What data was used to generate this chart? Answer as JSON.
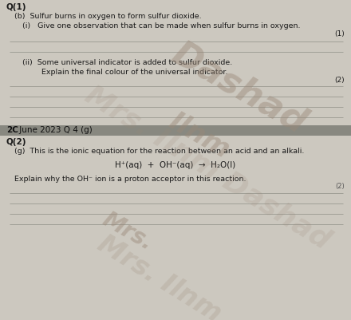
{
  "bg_color": "#ccc8bf",
  "header_bar_color": "#888880",
  "title_q1": "Q(1)",
  "part_b": "(b)  Sulfur burns in oxygen to form sulfur dioxide.",
  "part_i_label": "(i)   Give one observation that can be made when sulfur burns in oxygen.",
  "marks_i": "(1)",
  "part_ii_label_1": "(ii)  Some universal indicator is added to sulfur dioxide.",
  "part_ii_label_2": "        Explain the final colour of the universal indicator.",
  "marks_ii": "(2)",
  "section_bar_text_bold": "2C",
  "section_bar_text_normal": " June 2023 Q 4 (g)",
  "title_q2": "Q(2)",
  "part_g": "(g)  This is the ionic equation for the reaction between an acid and an alkali.",
  "equation": "H⁺(aq)  +  OH⁻(aq)  →  H₂O(l)",
  "part_g2": "Explain why the OH⁻ ion is a proton acceptor in this reaction.",
  "marks_g": "(2)",
  "line_color": "#999990",
  "watermark_color": "#9a8878",
  "watermark_alpha": 0.45,
  "text_color": "#1a1a1a"
}
